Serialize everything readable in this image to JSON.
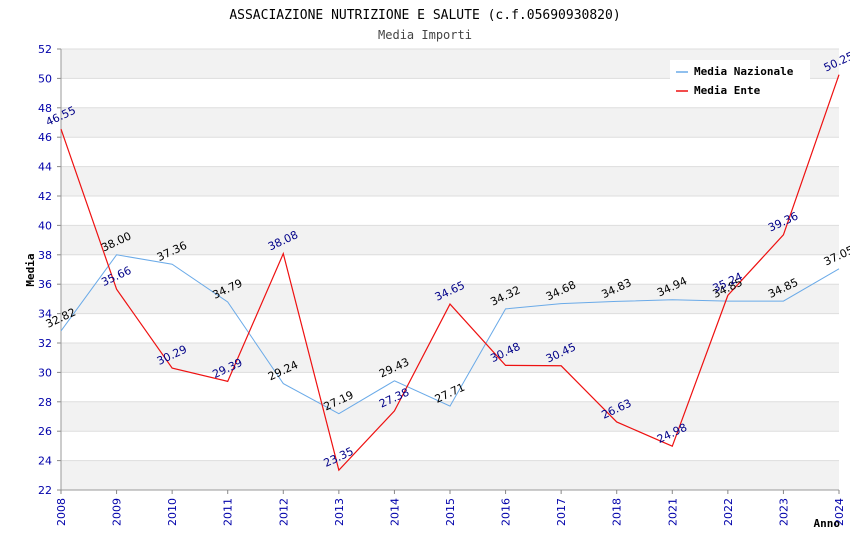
{
  "chart_data": {
    "type": "line",
    "title": "ASSACIAZIONE NUTRIZIONE E SALUTE (c.f.05690930820)",
    "subtitle": "Media Importi",
    "xlabel": "Anno",
    "ylabel": "Media",
    "ylim": [
      22,
      52
    ],
    "ytick_step": 2,
    "grid": "horizontal, alternating bands",
    "legend_position": "top-right",
    "categories": [
      "2008",
      "2009",
      "2010",
      "2011",
      "2012",
      "2013",
      "2014",
      "2015",
      "2016",
      "2017",
      "2018",
      "2021",
      "2022",
      "2023",
      "2024"
    ],
    "series": [
      {
        "name": "Media Nazionale",
        "color": "#6aaae8",
        "values": [
          32.82,
          38.0,
          37.36,
          34.79,
          29.24,
          27.19,
          29.43,
          27.71,
          34.32,
          34.68,
          34.83,
          34.94,
          34.85,
          34.85,
          37.05
        ],
        "labels": [
          "32.82",
          "38.00",
          "37.36",
          "34.79",
          "29.24",
          "27.19",
          "29.43",
          "27.71",
          "34.32",
          "34.68",
          "34.83",
          "34.94",
          "34.85",
          "34.85",
          "37.05"
        ]
      },
      {
        "name": "Media Ente",
        "color": "#ee1111",
        "values": [
          46.55,
          35.66,
          30.29,
          29.39,
          38.08,
          23.35,
          27.38,
          34.65,
          30.48,
          30.45,
          26.63,
          24.98,
          35.24,
          39.36,
          50.25
        ],
        "labels": [
          "46.55",
          "35.66",
          "30.29",
          "29.39",
          "38.08",
          "23.35",
          "27.38",
          "34.65",
          "30.48",
          "30.45",
          "26.63",
          "24.98",
          "35.24",
          "39.36",
          "50.25"
        ]
      }
    ]
  }
}
